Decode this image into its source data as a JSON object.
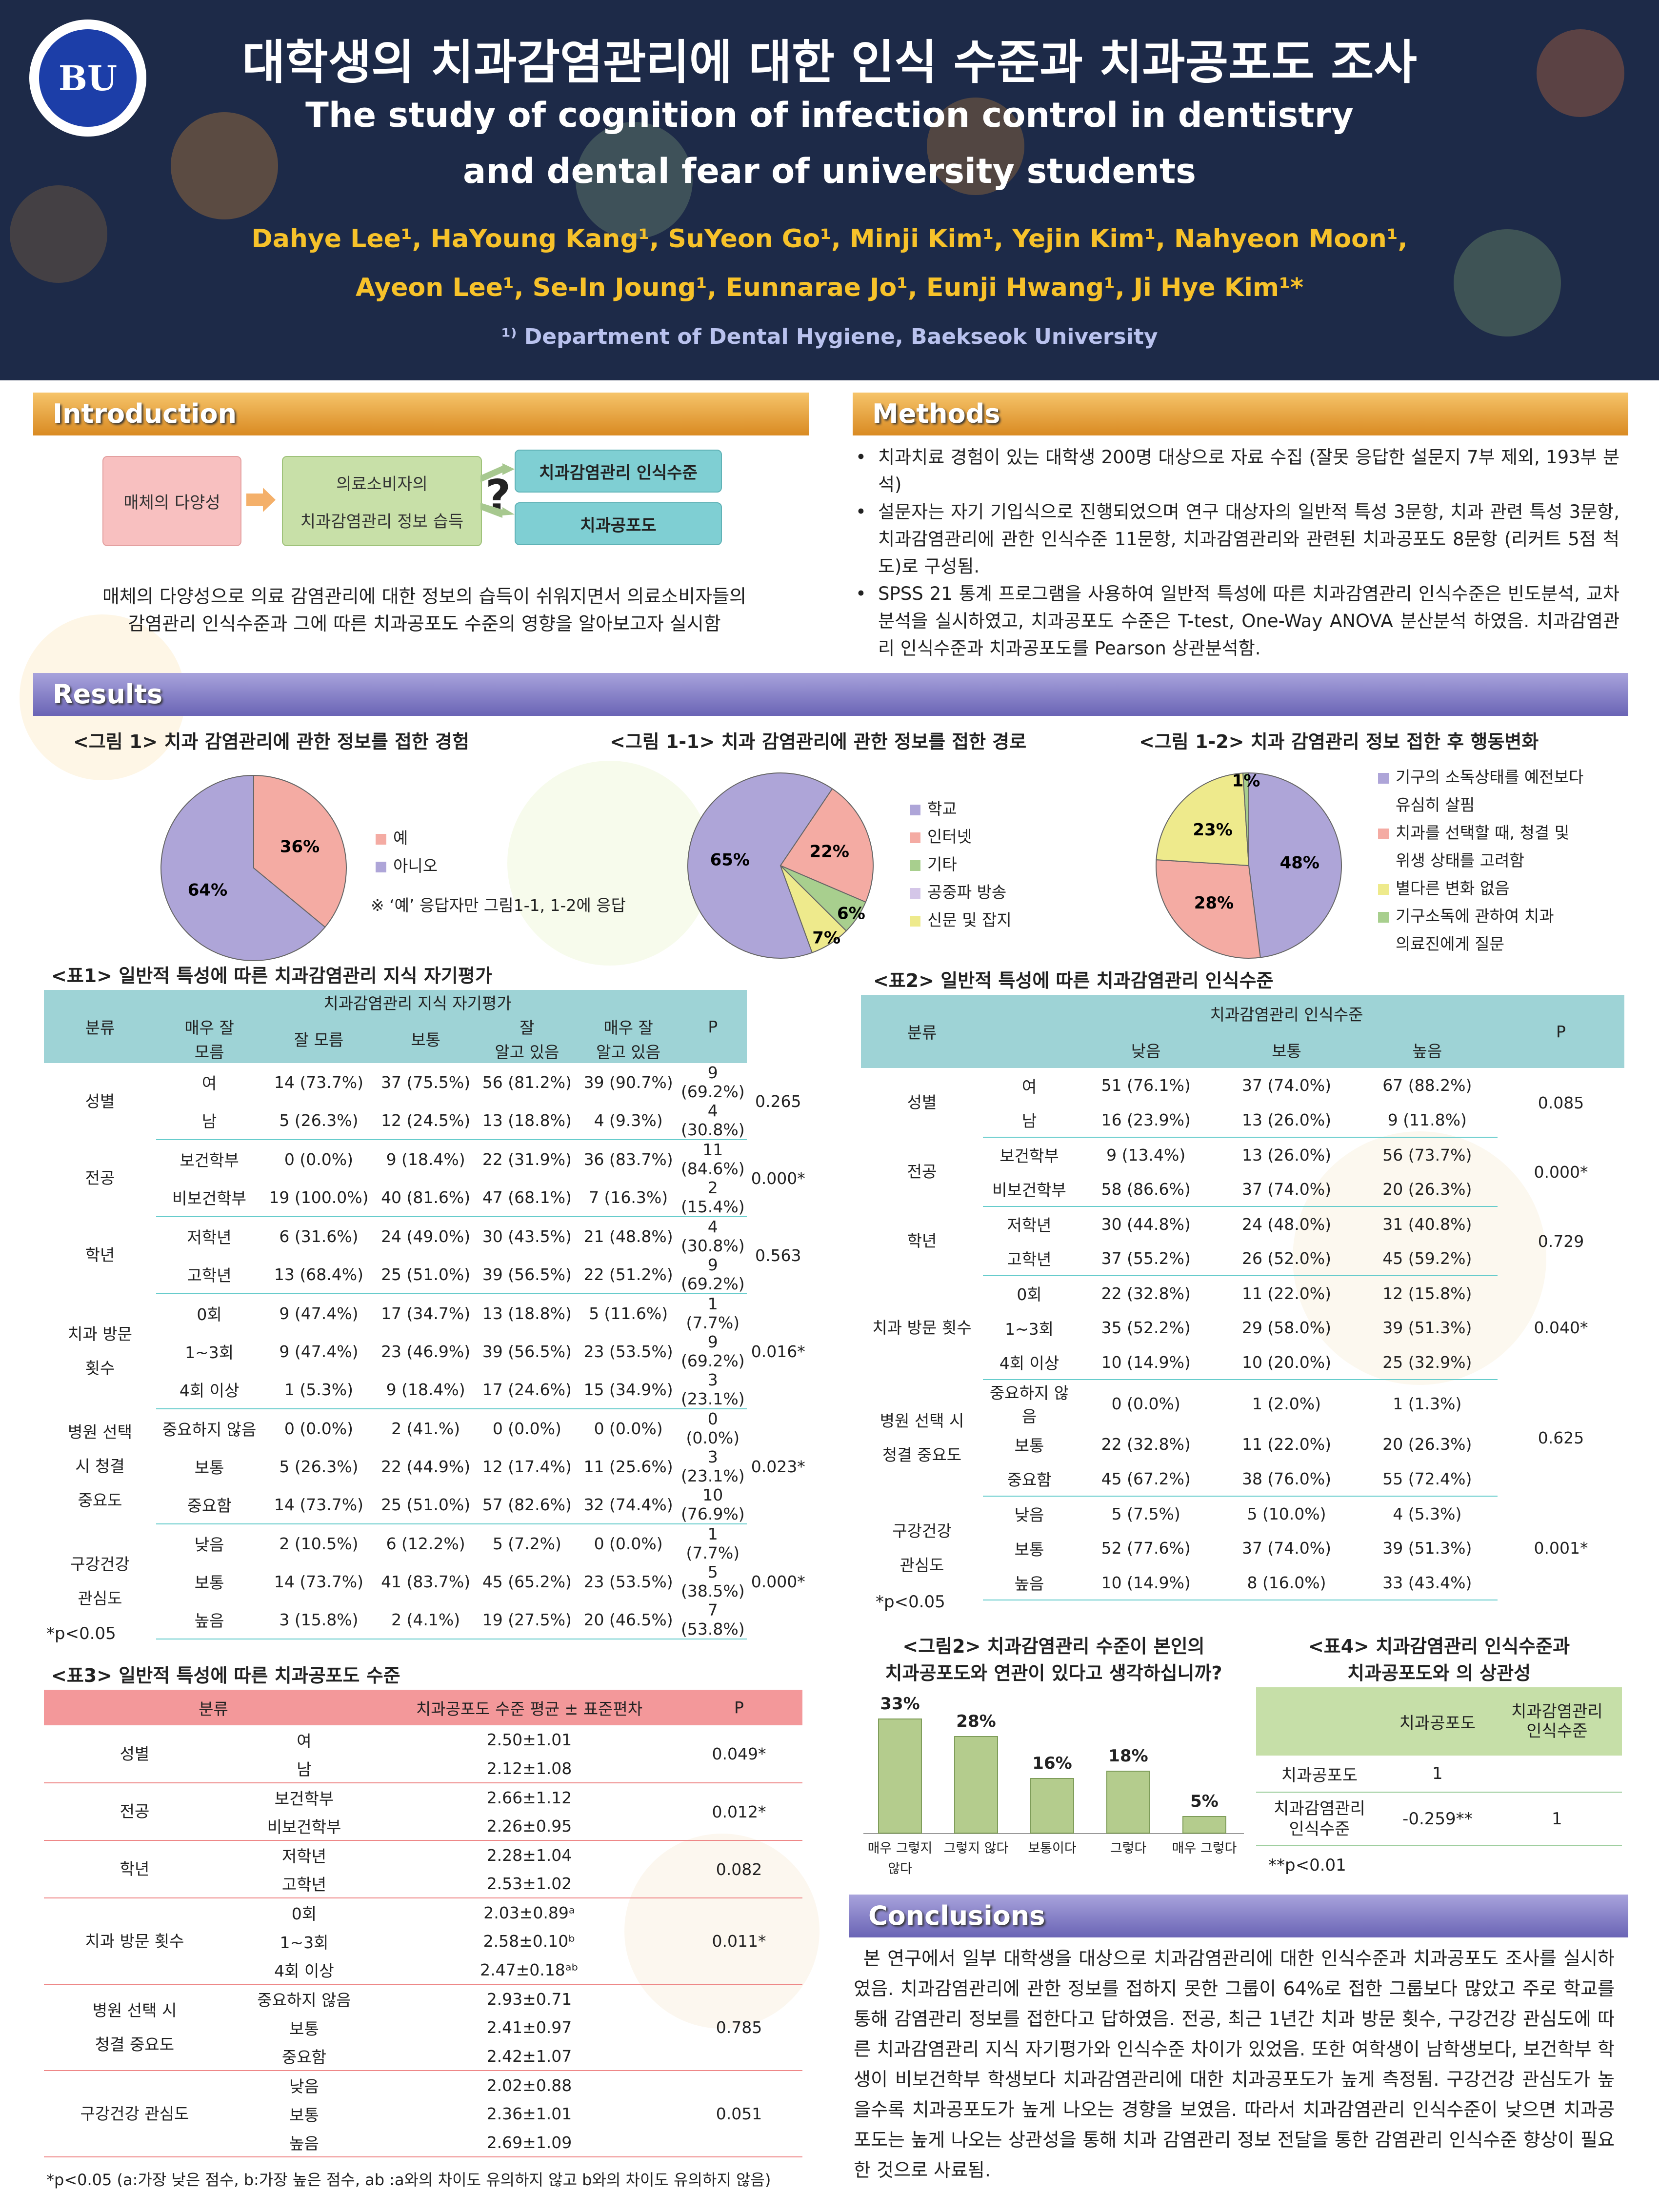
{
  "header": {
    "logo": "BU",
    "title_ko": "대학생의 치과감염관리에 대한 인식 수준과 치과공포도 조사",
    "title_en1": "The study of cognition of infection control in dentistry",
    "title_en2": "and dental fear of university students",
    "authors1": "Dahye Lee¹, HaYoung Kang¹, SuYeon Go¹, Minji Kim¹, Yejin Kim¹, Nahyeon Moon¹,",
    "authors2": "Ayeon Lee¹, Se-In Joung¹, Eunnarae Jo¹, Eunji Hwang¹, Ji Hye Kim¹*",
    "affiliation": "¹⁾ Department of Dental Hygiene, Baekseok University"
  },
  "intro": {
    "heading": "Introduction",
    "box1": "매체의 다양성",
    "box2a": "의료소비자의",
    "box2b": "치과감염관리 정보 습득",
    "q": "?",
    "box3": "치과감염관리 인식수준",
    "box4": "치과공포도",
    "text1": "매체의 다양성으로 의료 감염관리에 대한 정보의 습득이 쉬워지면서 의료소비자들의",
    "text2": "감염관리 인식수준과 그에 따른 치과공포도 수준의 영향을 알아보고자 실시함"
  },
  "methods": {
    "heading": "Methods",
    "items": [
      "치과치료 경험이 있는 대학생 200명 대상으로 자료 수집 (잘못 응답한 설문지 7부 제외, 193부 분석)",
      "설문자는 자기 기입식으로 진행되었으며 연구 대상자의 일반적 특성 3문항, 치과 관련 특성 3문항, 치과감염관리에 관한 인식수준 11문항, 치과감염관리와 관련된 치과공포도 8문항 (리커트 5점 척도)로 구성됨.",
      "SPSS 21 통계 프로그램을 사용하여 일반적 특성에 따른 치과감염관리 인식수준은 빈도분석, 교차분석을 실시하였고, 치과공포도 수준은 T-test, One-Way ANOVA 분산분석 하였음. 치과감염관리 인식수준과 치과공포도를 Pearson 상관분석함."
    ]
  },
  "results": {
    "heading": "Results"
  },
  "fig1": {
    "title": "<그림 1> 치과 감염관리에 관한 정보를 접한 경험",
    "legend": [
      "예",
      "아니오"
    ],
    "note": "※ ‘예’ 응답자만 그림1-1, 1-2에 응답"
  },
  "fig11": {
    "title": "<그림 1-1> 치과 감염관리에 관한 정보를 접한 경로",
    "legend": [
      "학교",
      "인터넷",
      "기타",
      "공중파 방송",
      "신문 및 잡지"
    ]
  },
  "fig12": {
    "title": "<그림 1-2> 치과 감염관리 정보 접한 후 행동변화",
    "legend": [
      "기구의 소독상태를 예전보다",
      "유심히 살핌",
      "치과를 선택할 때, 청결 및",
      "위생 상태를 고려함",
      "별다른 변화 없음",
      "기구소독에 관하여 치과",
      "의료진에게 질문"
    ]
  },
  "chart_data": [
    {
      "type": "pie",
      "title": "<그림 1> 치과 감염관리에 관한 정보를 접한 경험",
      "labels": [
        "예",
        "아니오"
      ],
      "values": [
        36,
        64
      ],
      "colors": [
        "#f4aba3",
        "#aea5d8"
      ]
    },
    {
      "type": "pie",
      "title": "<그림 1-1> 치과 감염관리에 관한 정보를 접한 경로",
      "labels": [
        "학교",
        "인터넷",
        "기타",
        "공중파 방송",
        "신문 및 잡지"
      ],
      "values": [
        65,
        22,
        6,
        0,
        7
      ],
      "colors": [
        "#aea5d8",
        "#f4aba3",
        "#a8cf8e",
        "#d4c6e8",
        "#eeea8c"
      ]
    },
    {
      "type": "pie",
      "title": "<그림 1-2> 치과 감염관리 정보 접한 후 행동변화",
      "labels": [
        "기구의 소독상태를 예전보다 유심히 살핌",
        "치과를 선택할 때, 청결 및 위생 상태를 고려함",
        "별다른 변화 없음",
        "기구소독에 관하여 치과 의료진에게 질문"
      ],
      "values": [
        48,
        28,
        23,
        1
      ],
      "colors": [
        "#aea5d8",
        "#f4aba3",
        "#eeea8c",
        "#a8cf8e"
      ]
    },
    {
      "type": "bar",
      "title": "<그림2> 치과감염관리 수준이 본인의 치과공포도와 연관이 있다고 생각하십니까?",
      "categories": [
        "매우 그렇지 않다",
        "그렇지 않다",
        "보통이다",
        "그렇다",
        "매우 그렇다"
      ],
      "values": [
        33,
        28,
        16,
        18,
        5
      ],
      "unit": "%"
    }
  ],
  "fig2": {
    "title1": "<그림2> 치과감염관리 수준이 본인의",
    "title2": "치과공포도와 연관이 있다고 생각하십니까?",
    "cat_a": "매우 그렇지",
    "cat_b": "않다"
  },
  "t1": {
    "title": "<표1> 일반적 특성에 따른 치과감염관리 지식 자기평가",
    "h_cat": "분류",
    "h_group": "치과감염관리 지식 자기평가",
    "h_c1a": "매우 잘",
    "h_c1b": "모름",
    "h_c2": "잘 모름",
    "h_c3": "보통",
    "h_c4a": "잘",
    "h_c4b": "알고 있음",
    "h_c5a": "매우 잘",
    "h_c5b": "알고 있음",
    "h_p": "P",
    "g_sex": "성별",
    "g_major": "전공",
    "g_grade": "학년",
    "g_visit1": "치과 방문",
    "g_visit2": "횟수",
    "g_hosp1": "병원 선택",
    "g_hosp2": "시 청결",
    "g_hosp3": "중요도",
    "g_oral1": "구강건강",
    "g_oral2": "관심도",
    "rows": [
      [
        "여",
        "14 (73.7%)",
        "37 (75.5%)",
        "56 (81.2%)",
        "39 (90.7%)",
        "9 (69.2%)"
      ],
      [
        "남",
        "5 (26.3%)",
        "12 (24.5%)",
        "13 (18.8%)",
        "4 (9.3%)",
        "4 (30.8%)"
      ],
      [
        "보건학부",
        "0 (0.0%)",
        "9 (18.4%)",
        "22 (31.9%)",
        "36 (83.7%)",
        "11 (84.6%)"
      ],
      [
        "비보건학부",
        "19 (100.0%)",
        "40 (81.6%)",
        "47 (68.1%)",
        "7 (16.3%)",
        "2 (15.4%)"
      ],
      [
        "저학년",
        "6 (31.6%)",
        "24 (49.0%)",
        "30 (43.5%)",
        "21 (48.8%)",
        "4 (30.8%)"
      ],
      [
        "고학년",
        "13 (68.4%)",
        "25 (51.0%)",
        "39 (56.5%)",
        "22 (51.2%)",
        "9 (69.2%)"
      ],
      [
        "0회",
        "9 (47.4%)",
        "17 (34.7%)",
        "13 (18.8%)",
        "5 (11.6%)",
        "1 (7.7%)"
      ],
      [
        "1~3회",
        "9 (47.4%)",
        "23 (46.9%)",
        "39 (56.5%)",
        "23 (53.5%)",
        "9 (69.2%)"
      ],
      [
        "4회 이상",
        "1 (5.3%)",
        "9 (18.4%)",
        "17 (24.6%)",
        "15 (34.9%)",
        "3 (23.1%)"
      ],
      [
        "중요하지 않음",
        "0 (0.0%)",
        "2 (41.%)",
        "0 (0.0%)",
        "0 (0.0%)",
        "0 (0.0%)"
      ],
      [
        "보통",
        "5 (26.3%)",
        "22 (44.9%)",
        "12 (17.4%)",
        "11 (25.6%)",
        "3 (23.1%)"
      ],
      [
        "중요함",
        "14 (73.7%)",
        "25 (51.0%)",
        "57 (82.6%)",
        "32 (74.4%)",
        "10 (76.9%)"
      ],
      [
        "낮음",
        "2 (10.5%)",
        "6 (12.2%)",
        "5 (7.2%)",
        "0 (0.0%)",
        "1 (7.7%)"
      ],
      [
        "보통",
        "14 (73.7%)",
        "41 (83.7%)",
        "45 (65.2%)",
        "23 (53.5%)",
        "5 (38.5%)"
      ],
      [
        "높음",
        "3 (15.8%)",
        "2 (4.1%)",
        "19 (27.5%)",
        "20 (46.5%)",
        "7 (53.8%)"
      ]
    ],
    "p": [
      "0.265",
      "0.000*",
      "0.563",
      "0.016*",
      "0.023*",
      "0.000*"
    ],
    "note": "*p<0.05"
  },
  "t2": {
    "title": "<표2> 일반적 특성에 따른 치과감염관리 인식수준",
    "h_cat": "분류",
    "h_group": "치과감염관리 인식수준",
    "h_c1": "낮음",
    "h_c2": "보통",
    "h_c3": "높음",
    "h_p": "P",
    "g_sex": "성별",
    "g_major": "전공",
    "g_grade": "학년",
    "g_visit": "치과 방문 횟수",
    "g_hosp1": "병원 선택 시",
    "g_hosp2": "청결 중요도",
    "g_oral1": "구강건강",
    "g_oral2": "관심도",
    "rows": [
      [
        "여",
        "51 (76.1%)",
        "37 (74.0%)",
        "67 (88.2%)"
      ],
      [
        "남",
        "16 (23.9%)",
        "13 (26.0%)",
        "9 (11.8%)"
      ],
      [
        "보건학부",
        "9 (13.4%)",
        "13 (26.0%)",
        "56 (73.7%)"
      ],
      [
        "비보건학부",
        "58 (86.6%)",
        "37 (74.0%)",
        "20 (26.3%)"
      ],
      [
        "저학년",
        "30 (44.8%)",
        "24 (48.0%)",
        "31 (40.8%)"
      ],
      [
        "고학년",
        "37 (55.2%)",
        "26 (52.0%)",
        "45 (59.2%)"
      ],
      [
        "0회",
        "22 (32.8%)",
        "11 (22.0%)",
        "12 (15.8%)"
      ],
      [
        "1~3회",
        "35 (52.2%)",
        "29 (58.0%)",
        "39 (51.3%)"
      ],
      [
        "4회 이상",
        "10 (14.9%)",
        "10 (20.0%)",
        "25 (32.9%)"
      ],
      [
        "중요하지 않음",
        "0 (0.0%)",
        "1 (2.0%)",
        "1 (1.3%)"
      ],
      [
        "보통",
        "22 (32.8%)",
        "11 (22.0%)",
        "20 (26.3%)"
      ],
      [
        "중요함",
        "45 (67.2%)",
        "38 (76.0%)",
        "55 (72.4%)"
      ],
      [
        "낮음",
        "5 (7.5%)",
        "5 (10.0%)",
        "4 (5.3%)"
      ],
      [
        "보통",
        "52 (77.6%)",
        "37 (74.0%)",
        "39 (51.3%)"
      ],
      [
        "높음",
        "10 (14.9%)",
        "8 (16.0%)",
        "33 (43.4%)"
      ]
    ],
    "p": [
      "0.085",
      "0.000*",
      "0.729",
      "0.040*",
      "0.625",
      "0.001*"
    ],
    "note": "*p<0.05"
  },
  "t3": {
    "title": "<표3> 일반적 특성에 따른 치과공포도 수준",
    "h_cat": "분류",
    "h_val": "치과공포도 수준 평균 ± 표준편차",
    "h_p": "P",
    "g_sex": "성별",
    "g_major": "전공",
    "g_grade": "학년",
    "g_visit": "치과 방문 횟수",
    "g_hosp1": "병원 선택 시",
    "g_hosp2": "청결 중요도",
    "g_oral": "구강건강 관심도",
    "rows": [
      [
        "여",
        "2.50±1.01"
      ],
      [
        "남",
        "2.12±1.08"
      ],
      [
        "보건학부",
        "2.66±1.12"
      ],
      [
        "비보건학부",
        "2.26±0.95"
      ],
      [
        "저학년",
        "2.28±1.04"
      ],
      [
        "고학년",
        "2.53±1.02"
      ],
      [
        "0회",
        "2.03±0.89ᵃ"
      ],
      [
        "1~3회",
        "2.58±0.10ᵇ"
      ],
      [
        "4회 이상",
        "2.47±0.18ᵃᵇ"
      ],
      [
        "중요하지 않음",
        "2.93±0.71"
      ],
      [
        "보통",
        "2.41±0.97"
      ],
      [
        "중요함",
        "2.42±1.07"
      ],
      [
        "낮음",
        "2.02±0.88"
      ],
      [
        "보통",
        "2.36±1.01"
      ],
      [
        "높음",
        "2.69±1.09"
      ]
    ],
    "p": [
      "0.049*",
      "0.012*",
      "0.082",
      "0.011*",
      "0.785",
      "0.051"
    ],
    "note": "*p<0.05 (a:가장 낮은 점수, b:가장 높은 점수, ab :a와의 차이도 유의하지 않고 b와의 차이도 유의하지 않음)"
  },
  "t4": {
    "title1": "<표4> 치과감염관리 인식수준과",
    "title2": "치과공포도와 의 상관성",
    "h1": "치과공포도",
    "h2a": "치과감염관리",
    "h2b": "인식수준",
    "r1": "치과공포도",
    "r1v": "1",
    "r2a": "치과감염관리",
    "r2b": "인식수준",
    "r2v1": "-0.259**",
    "r2v2": "1",
    "note": "**p<0.01"
  },
  "conclusions": {
    "heading": "Conclusions",
    "text": "본 연구에서 일부 대학생을 대상으로 치과감염관리에 대한 인식수준과 치과공포도 조사를 실시하였음. 치과감염관리에 관한 정보를 접하지 못한 그룹이 64%로 접한 그룹보다 많았고 주로 학교를 통해 감염관리 정보를 접한다고 답하였음. 전공, 최근 1년간 치과 방문 횟수, 구강건강 관심도에 따른 치과감염관리 지식 자기평가와 인식수준 차이가 있었음. 또한 여학생이 남학생보다, 보건학부 학생이 비보건학부 학생보다 치과감염관리에 대한 치과공포도가 높게 측정됨. 구강건강 관심도가 높을수록 치과공포도가 높게 나오는 경향을 보였음. 따라서 치과감염관리 인식수준이 낮으면 치과공포도는 높게 나오는 상관성을 통해 치과 감염관리 정보 전달을 통한 감염관리 인식수준 향상이 필요한 것으로 사료됨."
  }
}
